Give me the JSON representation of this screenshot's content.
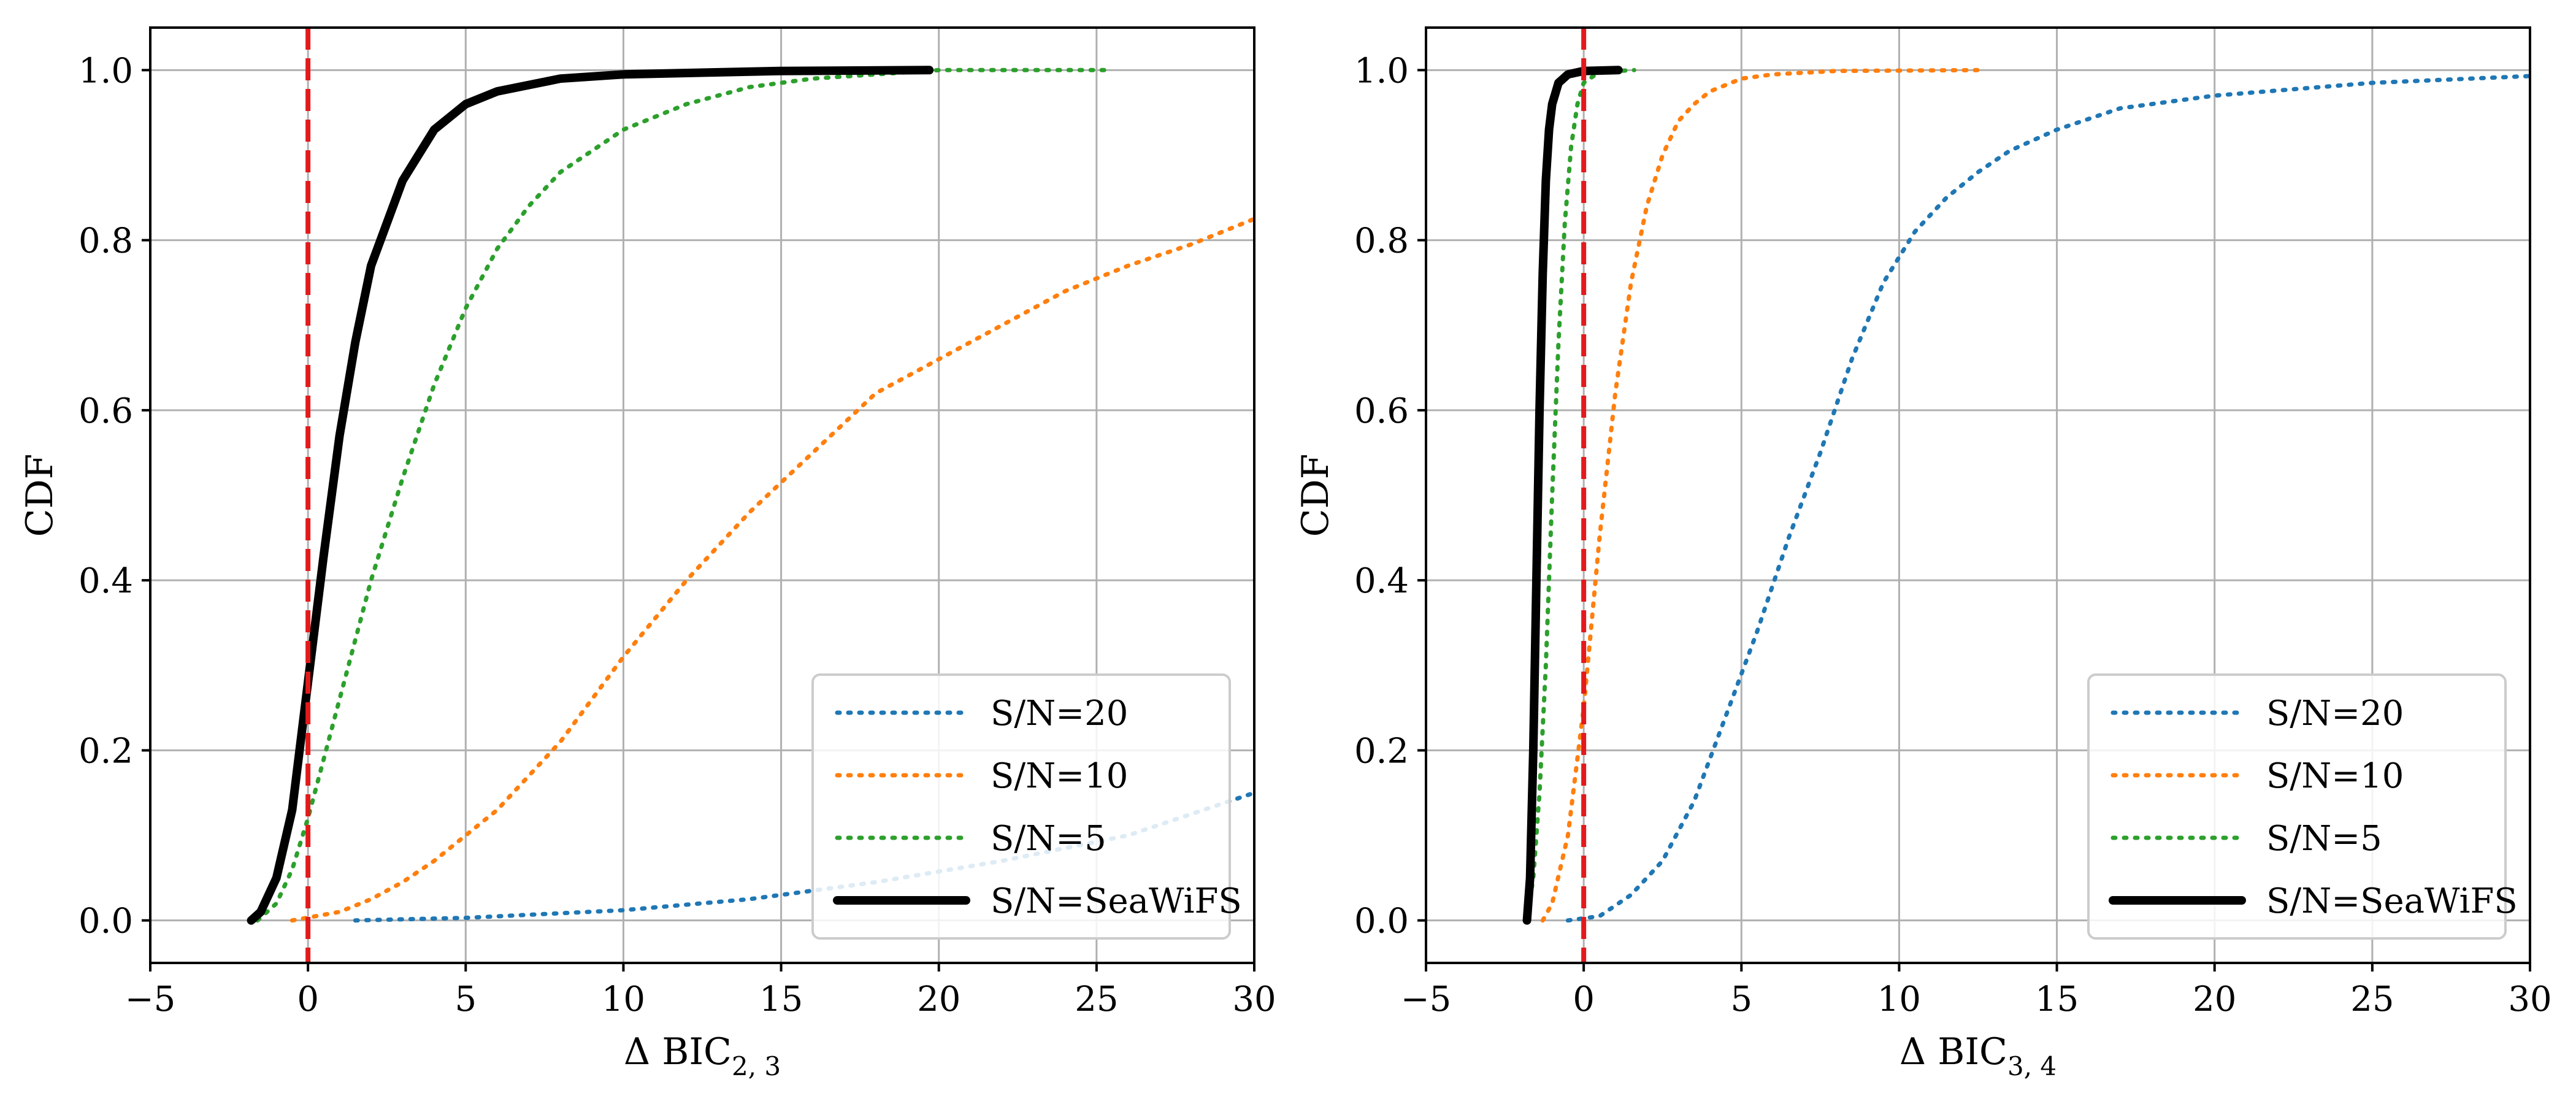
{
  "chart_data": [
    {
      "type": "line",
      "xlabel": "Δ BIC",
      "xlabel_sub": "2, 3",
      "ylabel": "CDF",
      "xlim": [
        -5,
        30
      ],
      "ylim": [
        -0.05,
        1.05
      ],
      "xticks": [
        -5,
        0,
        5,
        10,
        15,
        20,
        25,
        30
      ],
      "yticks": [
        0.0,
        0.2,
        0.4,
        0.6,
        0.8,
        1.0
      ],
      "xtick_labels": [
        "−5",
        "0",
        "5",
        "10",
        "15",
        "20",
        "25",
        "30"
      ],
      "ytick_labels": [
        "0.0",
        "0.2",
        "0.4",
        "0.6",
        "0.8",
        "1.0"
      ],
      "grid": true,
      "legend_position": "lower right",
      "vline": {
        "x": 0,
        "color": "#e31a1c",
        "style": "dashed"
      },
      "series": [
        {
          "name": "S/N=20",
          "color": "#1f77b4",
          "style": "dotted",
          "x": [
            1.5,
            5,
            10,
            14,
            18,
            22,
            26,
            30
          ],
          "y": [
            0.0,
            0.003,
            0.012,
            0.025,
            0.045,
            0.07,
            0.1,
            0.15
          ]
        },
        {
          "name": "S/N=10",
          "color": "#ff7f0e",
          "style": "dotted",
          "x": [
            -0.5,
            1,
            2,
            3,
            4,
            5,
            6,
            7,
            8,
            9,
            10,
            12,
            14,
            16,
            18,
            20,
            22,
            24,
            26,
            28,
            30
          ],
          "y": [
            0.0,
            0.01,
            0.025,
            0.045,
            0.07,
            0.1,
            0.13,
            0.17,
            0.21,
            0.26,
            0.31,
            0.4,
            0.48,
            0.55,
            0.62,
            0.66,
            0.7,
            0.74,
            0.77,
            0.795,
            0.825
          ]
        },
        {
          "name": "S/N=5",
          "color": "#2ca02c",
          "style": "dotted",
          "x": [
            -1.6,
            -1,
            -0.5,
            0,
            0.5,
            1,
            1.5,
            2,
            3,
            4,
            5,
            6,
            7,
            8,
            10,
            12,
            14,
            16,
            18,
            20,
            25.3
          ],
          "y": [
            0.0,
            0.02,
            0.06,
            0.12,
            0.19,
            0.26,
            0.33,
            0.4,
            0.52,
            0.63,
            0.72,
            0.79,
            0.84,
            0.88,
            0.93,
            0.96,
            0.98,
            0.99,
            0.995,
            1.0,
            1.0
          ]
        },
        {
          "name": "S/N=SeaWiFS",
          "color": "#000000",
          "style": "solid",
          "x": [
            -1.8,
            -1.5,
            -1,
            -0.5,
            0,
            0.5,
            1,
            1.5,
            2,
            3,
            4,
            5,
            6,
            8,
            10,
            15,
            19.7
          ],
          "y": [
            0.0,
            0.01,
            0.05,
            0.13,
            0.28,
            0.43,
            0.57,
            0.68,
            0.77,
            0.87,
            0.93,
            0.96,
            0.975,
            0.99,
            0.995,
            0.999,
            1.0
          ]
        }
      ]
    },
    {
      "type": "line",
      "xlabel": "Δ BIC",
      "xlabel_sub": "3, 4",
      "ylabel": "CDF",
      "xlim": [
        -5,
        30
      ],
      "ylim": [
        -0.05,
        1.05
      ],
      "xticks": [
        -5,
        0,
        5,
        10,
        15,
        20,
        25,
        30
      ],
      "yticks": [
        0.0,
        0.2,
        0.4,
        0.6,
        0.8,
        1.0
      ],
      "xtick_labels": [
        "−5",
        "0",
        "5",
        "10",
        "15",
        "20",
        "25",
        "30"
      ],
      "ytick_labels": [
        "0.0",
        "0.2",
        "0.4",
        "0.6",
        "0.8",
        "1.0"
      ],
      "grid": true,
      "legend_position": "lower right",
      "vline": {
        "x": 0,
        "color": "#e31a1c",
        "style": "dashed"
      },
      "series": [
        {
          "name": "S/N=20",
          "color": "#1f77b4",
          "style": "dotted",
          "x": [
            -0.5,
            0.5,
            1.5,
            2.5,
            3.5,
            4.5,
            5.5,
            6.5,
            7.5,
            8.5,
            9.5,
            10.5,
            11.5,
            12.5,
            13.5,
            15,
            17,
            20,
            25,
            30
          ],
          "y": [
            0.0,
            0.005,
            0.03,
            0.07,
            0.14,
            0.24,
            0.34,
            0.45,
            0.55,
            0.66,
            0.75,
            0.81,
            0.85,
            0.88,
            0.905,
            0.93,
            0.955,
            0.97,
            0.985,
            0.993
          ]
        },
        {
          "name": "S/N=10",
          "color": "#ff7f0e",
          "style": "dotted",
          "x": [
            -1.3,
            -1,
            -0.5,
            0,
            0.5,
            1,
            1.5,
            2,
            2.5,
            3,
            3.5,
            4,
            5,
            6,
            8,
            12.5
          ],
          "y": [
            0.0,
            0.02,
            0.1,
            0.25,
            0.45,
            0.62,
            0.75,
            0.84,
            0.9,
            0.94,
            0.96,
            0.975,
            0.99,
            0.995,
            0.999,
            1.0
          ]
        },
        {
          "name": "S/N=5",
          "color": "#2ca02c",
          "style": "dotted",
          "x": [
            -1.8,
            -1.6,
            -1.4,
            -1.2,
            -1,
            -0.8,
            -0.6,
            -0.4,
            -0.2,
            0,
            0.5,
            1.6
          ],
          "y": [
            0.0,
            0.05,
            0.15,
            0.3,
            0.5,
            0.68,
            0.82,
            0.91,
            0.96,
            0.985,
            0.998,
            1.0
          ]
        },
        {
          "name": "S/N=SeaWiFS",
          "color": "#000000",
          "style": "solid",
          "x": [
            -1.8,
            -1.7,
            -1.6,
            -1.5,
            -1.4,
            -1.3,
            -1.2,
            -1.1,
            -1,
            -0.8,
            -0.5,
            0,
            1.1
          ],
          "y": [
            0.0,
            0.05,
            0.2,
            0.4,
            0.6,
            0.76,
            0.87,
            0.93,
            0.96,
            0.985,
            0.995,
            0.999,
            1.0
          ]
        }
      ]
    }
  ]
}
